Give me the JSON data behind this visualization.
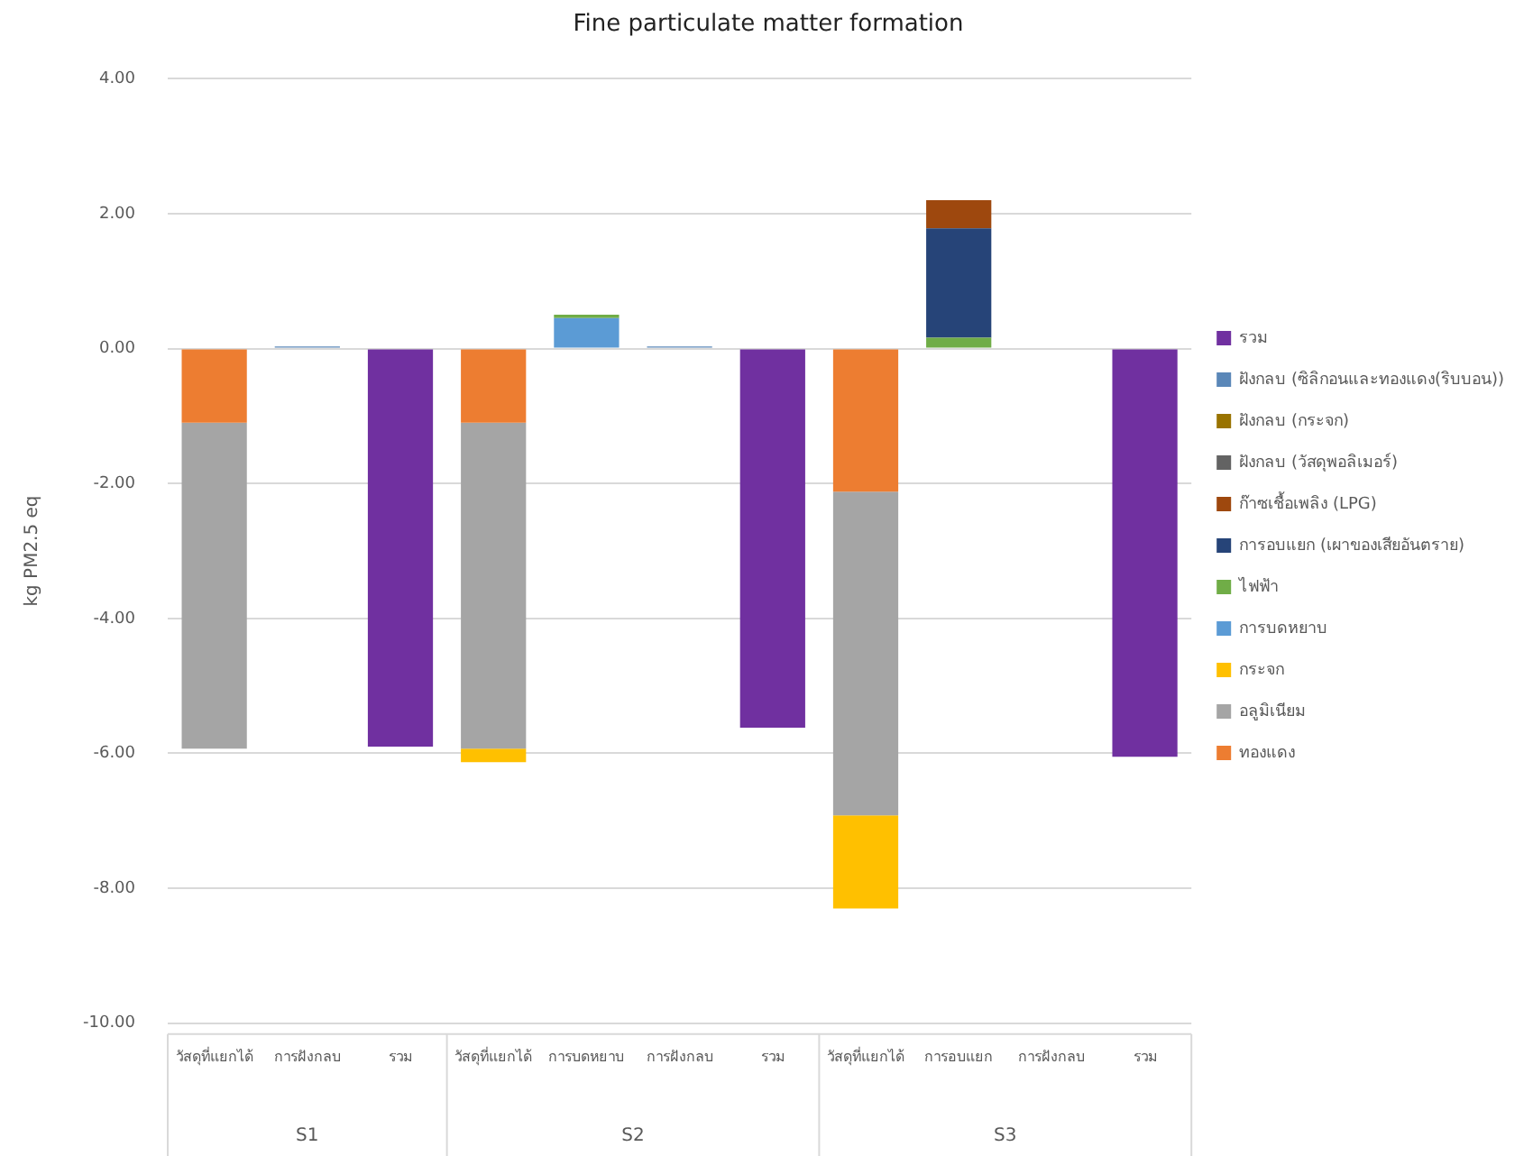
{
  "chart_data": {
    "type": "bar",
    "title": "Fine particulate matter formation",
    "ylabel": "kg PM2.5 eq",
    "categories": [
      "วัสดุที่แยกได้",
      "การฝังกลบ",
      "รวม",
      "วัสดุที่แยกได้",
      "การบดหยาบ",
      "การฝังกลบ",
      "รวม",
      "วัสดุที่แยกได้",
      "การอบแยก",
      "การฝังกลบ",
      "รวม"
    ],
    "annotations": [
      "S1",
      "S2",
      "S3"
    ],
    "stacked": true,
    "legend": "right",
    "grid": "y",
    "ylim": [
      -10,
      4
    ],
    "yticks": [
      {
        "value": -10,
        "label": "-10.00"
      },
      {
        "value": -8,
        "label": "-8.00"
      },
      {
        "value": -6,
        "label": "-6.00"
      },
      {
        "value": -4,
        "label": "-4.00"
      },
      {
        "value": -2,
        "label": "-2.00"
      },
      {
        "value": 0,
        "label": "0.00"
      },
      {
        "value": 2,
        "label": "2.00"
      },
      {
        "value": 4,
        "label": "4.00"
      }
    ],
    "series": [
      {
        "name": "ทองแดง",
        "color": "#ed7d31",
        "values": [
          -1.1,
          null,
          null,
          -1.1,
          null,
          null,
          null,
          -2.12,
          null,
          null,
          null
        ]
      },
      {
        "name": "อลูมิเนียม",
        "color": "#a5a5a5",
        "values": [
          -4.83,
          null,
          null,
          -4.83,
          null,
          null,
          null,
          -4.8,
          null,
          null,
          null
        ]
      },
      {
        "name": "กระจก",
        "color": "#ffc000",
        "values": [
          null,
          null,
          null,
          -0.2,
          null,
          null,
          null,
          -1.38,
          null,
          null,
          null
        ]
      },
      {
        "name": "การบดหยาบ",
        "color": "#5b9bd5",
        "values": [
          null,
          null,
          null,
          null,
          0.45,
          null,
          null,
          null,
          null,
          null,
          null
        ]
      },
      {
        "name": "ไฟฟ้า",
        "color": "#70ad47",
        "values": [
          null,
          null,
          null,
          null,
          0.05,
          null,
          null,
          null,
          0.16,
          null,
          null
        ]
      },
      {
        "name": "การอบแยก (เผาของเสียอันตราย)",
        "color": "#264478",
        "values": [
          null,
          null,
          null,
          null,
          null,
          null,
          null,
          null,
          1.62,
          null,
          null
        ]
      },
      {
        "name": "ก๊าซเชื้อเพลิง (LPG)",
        "color": "#9e480e",
        "values": [
          null,
          null,
          null,
          null,
          null,
          null,
          null,
          null,
          0.42,
          null,
          null
        ]
      },
      {
        "name": "ฝังกลบ (วัสดุพอลิเมอร์)",
        "color": "#636363",
        "values": [
          null,
          null,
          null,
          null,
          null,
          null,
          null,
          null,
          null,
          null,
          null
        ]
      },
      {
        "name": "ฝังกลบ (กระจก)",
        "color": "#997300",
        "values": [
          null,
          null,
          null,
          null,
          null,
          null,
          null,
          null,
          null,
          null,
          null
        ]
      },
      {
        "name": "ฝังกลบ (ซิลิกอนและทองแดง(ริบบอน))",
        "color": "#5a87b8",
        "values": [
          null,
          0.03,
          null,
          null,
          null,
          0.03,
          null,
          null,
          null,
          null,
          null
        ]
      },
      {
        "name": "รวม",
        "color": "#7030a0",
        "values": [
          null,
          null,
          -5.9,
          null,
          null,
          null,
          -5.62,
          null,
          null,
          null,
          -6.05
        ]
      }
    ]
  }
}
